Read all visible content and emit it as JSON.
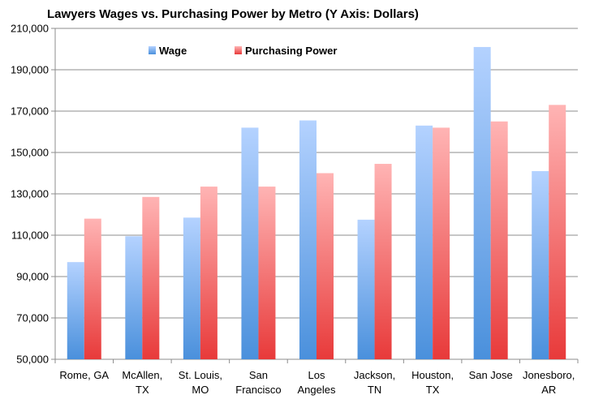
{
  "chart_data": {
    "type": "bar",
    "title": "Lawyers Wages vs. Purchasing Power by Metro (Y Axis: Dollars)",
    "xlabel": "",
    "ylabel": "",
    "ylim": [
      50000,
      210000
    ],
    "yticks": [
      50000,
      70000,
      90000,
      110000,
      130000,
      150000,
      170000,
      190000,
      210000
    ],
    "ytick_labels": [
      "50,000",
      "70,000",
      "90,000",
      "110,000",
      "130,000",
      "150,000",
      "170,000",
      "190,000",
      "210,000"
    ],
    "grid": true,
    "legend_position": "top-left",
    "categories": [
      [
        "Rome, GA"
      ],
      [
        "McAllen,",
        "TX"
      ],
      [
        "St. Louis,",
        "MO"
      ],
      [
        "San",
        "Francisco"
      ],
      [
        "Los",
        "Angeles"
      ],
      [
        "Jackson,",
        "TN"
      ],
      [
        "Houston,",
        "TX"
      ],
      [
        "San Jose"
      ],
      [
        "Jonesboro,",
        "AR"
      ]
    ],
    "series": [
      {
        "name": "Wage",
        "color_top": "#b4d2ff",
        "color_bottom": "#4a90dc",
        "values": [
          97000,
          109500,
          118500,
          162000,
          165500,
          117500,
          163000,
          201000,
          141000
        ]
      },
      {
        "name": "Purchasing Power",
        "color_top": "#ffb4b4",
        "color_bottom": "#e83a3a",
        "values": [
          118000,
          128500,
          133500,
          133500,
          140000,
          144500,
          162000,
          165000,
          173000
        ]
      }
    ]
  }
}
